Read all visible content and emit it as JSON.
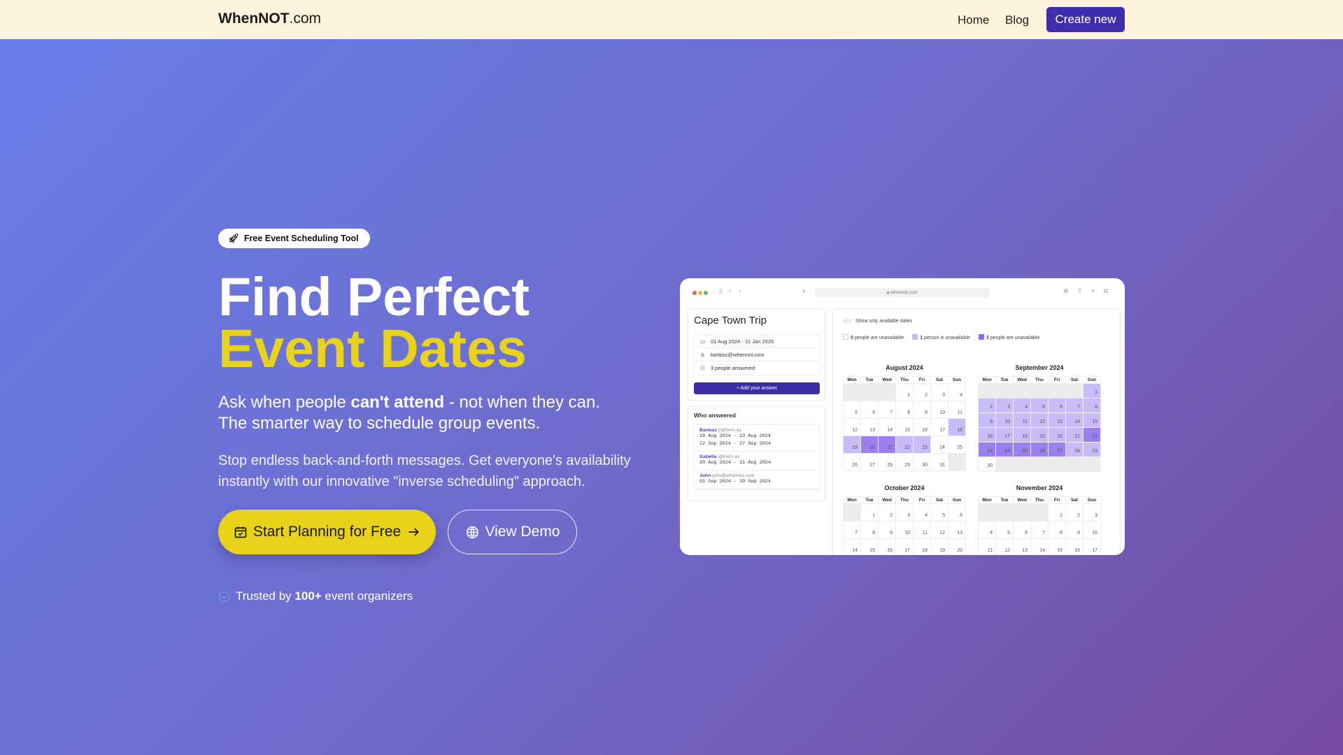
{
  "header": {
    "logo_bold": "WhenNOT",
    "logo_rest": ".com",
    "nav": [
      "Home",
      "Blog"
    ],
    "cta": "Create new"
  },
  "hero": {
    "badge": "Free Event Scheduling Tool",
    "title_line1": "Find Perfect",
    "title_line2": "Event Dates",
    "sub_pre": "Ask when people ",
    "sub_bold": "can't attend",
    "sub_post": " - not when they can.",
    "sub_line2": "The smarter way to schedule group events.",
    "para": "Stop endless back-and-forth messages. Get everyone's availability instantly with our innovative \"inverse scheduling\" approach.",
    "primary_button": "Start Planning for Free",
    "secondary_button": "View Demo",
    "trust_pre": "Trusted by ",
    "trust_bold": "100+",
    "trust_post": " event organizers"
  },
  "colors": {
    "accent": "#3f2eab",
    "yellow": "#e8d21a",
    "light": "#c9baf8",
    "dark": "#9a7ff0"
  },
  "mockup": {
    "url": "whennot.com",
    "event": {
      "title": "Cape Town Trip",
      "dates": "01 Aug 2024 - 31 Jan 2025",
      "owner": "bartosz@whennot.com",
      "answered": "3 people answered",
      "add_button": "+ Add your answer"
    },
    "who_title": "Who answered",
    "answers": [
      {
        "name": "Bartosz",
        "email": "b@hem.as",
        "ranges": [
          "18 Aug 2024 - 23 Aug 2024",
          "22 Sep 2024 - 27 Sep 2024"
        ]
      },
      {
        "name": "Izabella",
        "email": "i@hem.as",
        "ranges": [
          "20 Aug 2024 - 21 Aug 2024"
        ]
      },
      {
        "name": "John",
        "email": "john@whennot.com",
        "ranges": [
          "01 Sep 2024 - 29 Sep 2024"
        ]
      }
    ],
    "toggle_label": "Show only available dates",
    "legend": [
      {
        "bold": "0",
        "text": " people are unavailable"
      },
      {
        "bold": "1",
        "text": " person is unavailable"
      },
      {
        "bold": "3",
        "text": " people are unavailable"
      }
    ],
    "weekdays": [
      "Mon",
      "Tue",
      "Wed",
      "Thu",
      "Fri",
      "Sat",
      "Sun"
    ],
    "months": [
      {
        "title": "August 2024",
        "y": 2024,
        "m": 8
      },
      {
        "title": "September 2024",
        "y": 2024,
        "m": 9
      },
      {
        "title": "October 2024",
        "y": 2024,
        "m": 10
      },
      {
        "title": "November 2024",
        "y": 2024,
        "m": 11
      }
    ]
  }
}
